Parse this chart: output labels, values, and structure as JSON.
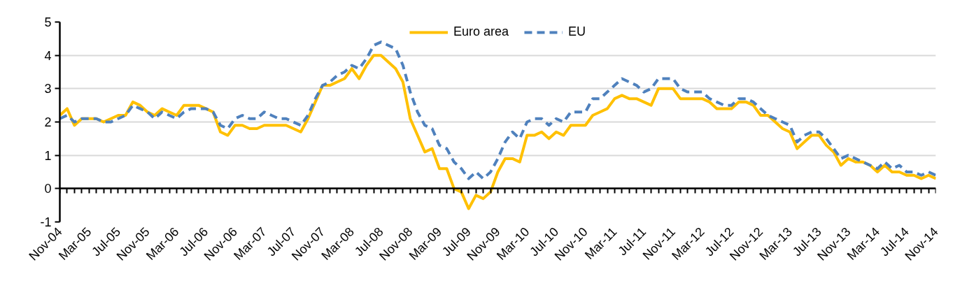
{
  "chart_data": {
    "type": "line",
    "categories": [
      "Nov-04",
      null,
      null,
      null,
      "Mar-05",
      null,
      null,
      null,
      "Jul-05",
      null,
      null,
      null,
      "Nov-05",
      null,
      null,
      null,
      "Mar-06",
      null,
      null,
      null,
      "Jul-06",
      null,
      null,
      null,
      "Nov-06",
      null,
      null,
      null,
      "Mar-07",
      null,
      null,
      null,
      "Jul-07",
      null,
      null,
      null,
      "Nov-07",
      null,
      null,
      null,
      "Mar-08",
      null,
      null,
      null,
      "Jul-08",
      null,
      null,
      null,
      "Nov-08",
      null,
      null,
      null,
      "Mar-09",
      null,
      null,
      null,
      "Jul-09",
      null,
      null,
      null,
      "Nov-09",
      null,
      null,
      null,
      "Mar-10",
      null,
      null,
      null,
      "Jul-10",
      null,
      null,
      null,
      "Nov-10",
      null,
      null,
      null,
      "Mar-11",
      null,
      null,
      null,
      "Jul-11",
      null,
      null,
      null,
      "Nov-11",
      null,
      null,
      null,
      "Mar-12",
      null,
      null,
      null,
      "Jul-12",
      null,
      null,
      null,
      "Nov-12",
      null,
      null,
      null,
      "Mar-13",
      null,
      null,
      null,
      "Jul-13",
      null,
      null,
      null,
      "Nov-13",
      null,
      null,
      null,
      "Mar-14",
      null,
      null,
      null,
      "Jul-14",
      null,
      null,
      null,
      "Nov-14"
    ],
    "series": [
      {
        "name": "Euro area",
        "color": "#ffc000",
        "line_style": "solid",
        "values": [
          2.2,
          2.4,
          1.9,
          2.1,
          2.1,
          2.1,
          2.0,
          2.1,
          2.2,
          2.2,
          2.6,
          2.5,
          2.3,
          2.2,
          2.4,
          2.3,
          2.2,
          2.5,
          2.5,
          2.5,
          2.4,
          2.3,
          1.7,
          1.6,
          1.9,
          1.9,
          1.8,
          1.8,
          1.9,
          1.9,
          1.9,
          1.9,
          1.8,
          1.7,
          2.1,
          2.6,
          3.1,
          3.1,
          3.2,
          3.3,
          3.6,
          3.3,
          3.7,
          4.0,
          4.0,
          3.8,
          3.6,
          3.2,
          2.1,
          1.6,
          1.1,
          1.2,
          0.6,
          0.6,
          0.0,
          -0.1,
          -0.6,
          -0.2,
          -0.3,
          -0.1,
          0.5,
          0.9,
          0.9,
          0.8,
          1.6,
          1.6,
          1.7,
          1.5,
          1.7,
          1.6,
          1.9,
          1.9,
          1.9,
          2.2,
          2.3,
          2.4,
          2.7,
          2.8,
          2.7,
          2.7,
          2.6,
          2.5,
          3.0,
          3.0,
          3.0,
          2.7,
          2.7,
          2.7,
          2.7,
          2.6,
          2.4,
          2.4,
          2.4,
          2.6,
          2.6,
          2.5,
          2.2,
          2.2,
          2.0,
          1.8,
          1.7,
          1.2,
          1.4,
          1.6,
          1.6,
          1.3,
          1.1,
          0.7,
          0.9,
          0.8,
          0.8,
          0.7,
          0.5,
          0.7,
          0.5,
          0.5,
          0.4,
          0.4,
          0.3,
          0.4,
          0.3
        ]
      },
      {
        "name": "EU",
        "color": "#4f81bd",
        "line_style": "dashed",
        "values": [
          2.1,
          2.2,
          2.0,
          2.1,
          2.1,
          2.1,
          2.0,
          2.0,
          2.1,
          2.2,
          2.5,
          2.4,
          2.3,
          2.1,
          2.3,
          2.2,
          2.1,
          2.3,
          2.4,
          2.4,
          2.4,
          2.3,
          1.9,
          1.8,
          2.1,
          2.2,
          2.1,
          2.1,
          2.3,
          2.2,
          2.1,
          2.1,
          2.0,
          1.9,
          2.2,
          2.7,
          3.1,
          3.2,
          3.4,
          3.5,
          3.7,
          3.6,
          3.9,
          4.3,
          4.4,
          4.3,
          4.2,
          3.7,
          2.9,
          2.3,
          1.9,
          1.8,
          1.3,
          1.2,
          0.8,
          0.6,
          0.3,
          0.5,
          0.3,
          0.5,
          0.9,
          1.4,
          1.7,
          1.5,
          2.0,
          2.1,
          2.1,
          1.9,
          2.1,
          2.0,
          2.3,
          2.3,
          2.3,
          2.7,
          2.7,
          2.9,
          3.1,
          3.3,
          3.2,
          3.1,
          2.9,
          3.0,
          3.3,
          3.3,
          3.3,
          3.0,
          2.9,
          2.9,
          2.9,
          2.7,
          2.6,
          2.5,
          2.5,
          2.7,
          2.7,
          2.6,
          2.4,
          2.2,
          2.1,
          2.0,
          1.9,
          1.4,
          1.6,
          1.7,
          1.7,
          1.5,
          1.2,
          0.9,
          1.0,
          0.9,
          0.8,
          0.7,
          0.6,
          0.8,
          0.6,
          0.7,
          0.5,
          0.5,
          0.4,
          0.5,
          0.4
        ]
      }
    ],
    "ylim": [
      -1,
      5
    ],
    "yticks": [
      -1,
      0,
      1,
      2,
      3,
      4,
      5
    ],
    "grid": "y",
    "legend": "top"
  }
}
